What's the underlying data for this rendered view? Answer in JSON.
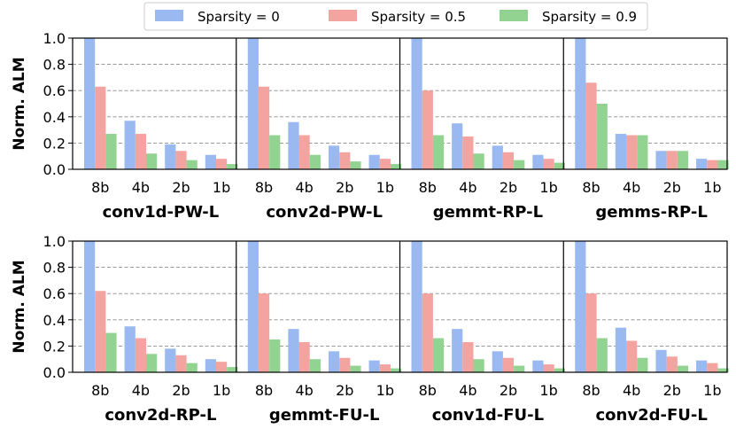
{
  "chart_data": {
    "type": "bar",
    "ylabel": "Norm. ALM",
    "ylim": [
      0,
      1.0
    ],
    "yticks": [
      "0.0",
      "0.2",
      "0.4",
      "0.6",
      "0.8",
      "1.0"
    ],
    "grid": "horizontal-dashed",
    "legend_position": "top-center",
    "categories": [
      "8b",
      "4b",
      "2b",
      "1b"
    ],
    "series": [
      {
        "name": "Sparsity = 0",
        "color": "#99b9f0"
      },
      {
        "name": "Sparsity = 0.5",
        "color": "#f3a3a0"
      },
      {
        "name": "Sparsity = 0.9",
        "color": "#92d392"
      }
    ],
    "panels": [
      {
        "title": "conv1d-PW-L",
        "values": [
          [
            1.0,
            0.37,
            0.19,
            0.11
          ],
          [
            0.63,
            0.27,
            0.14,
            0.08
          ],
          [
            0.27,
            0.12,
            0.07,
            0.04
          ]
        ]
      },
      {
        "title": "conv2d-PW-L",
        "values": [
          [
            1.0,
            0.36,
            0.18,
            0.11
          ],
          [
            0.63,
            0.26,
            0.13,
            0.08
          ],
          [
            0.26,
            0.11,
            0.06,
            0.04
          ]
        ]
      },
      {
        "title": "gemmt-RP-L",
        "values": [
          [
            1.0,
            0.35,
            0.18,
            0.11
          ],
          [
            0.6,
            0.25,
            0.13,
            0.08
          ],
          [
            0.26,
            0.12,
            0.07,
            0.05
          ]
        ]
      },
      {
        "title": "gemms-RP-L",
        "values": [
          [
            1.0,
            0.27,
            0.14,
            0.08
          ],
          [
            0.66,
            0.26,
            0.14,
            0.07
          ],
          [
            0.5,
            0.26,
            0.14,
            0.07
          ]
        ]
      },
      {
        "title": "conv2d-RP-L",
        "values": [
          [
            1.0,
            0.35,
            0.18,
            0.1
          ],
          [
            0.62,
            0.26,
            0.13,
            0.08
          ],
          [
            0.3,
            0.14,
            0.07,
            0.04
          ]
        ]
      },
      {
        "title": "gemmt-FU-L",
        "values": [
          [
            1.0,
            0.33,
            0.16,
            0.09
          ],
          [
            0.6,
            0.23,
            0.11,
            0.06
          ],
          [
            0.25,
            0.1,
            0.05,
            0.03
          ]
        ]
      },
      {
        "title": "conv1d-FU-L",
        "values": [
          [
            1.0,
            0.33,
            0.16,
            0.09
          ],
          [
            0.6,
            0.23,
            0.11,
            0.06
          ],
          [
            0.26,
            0.1,
            0.05,
            0.03
          ]
        ]
      },
      {
        "title": "conv2d-FU-L",
        "values": [
          [
            1.0,
            0.34,
            0.17,
            0.09
          ],
          [
            0.6,
            0.24,
            0.12,
            0.07
          ],
          [
            0.26,
            0.11,
            0.05,
            0.03
          ]
        ]
      }
    ]
  }
}
